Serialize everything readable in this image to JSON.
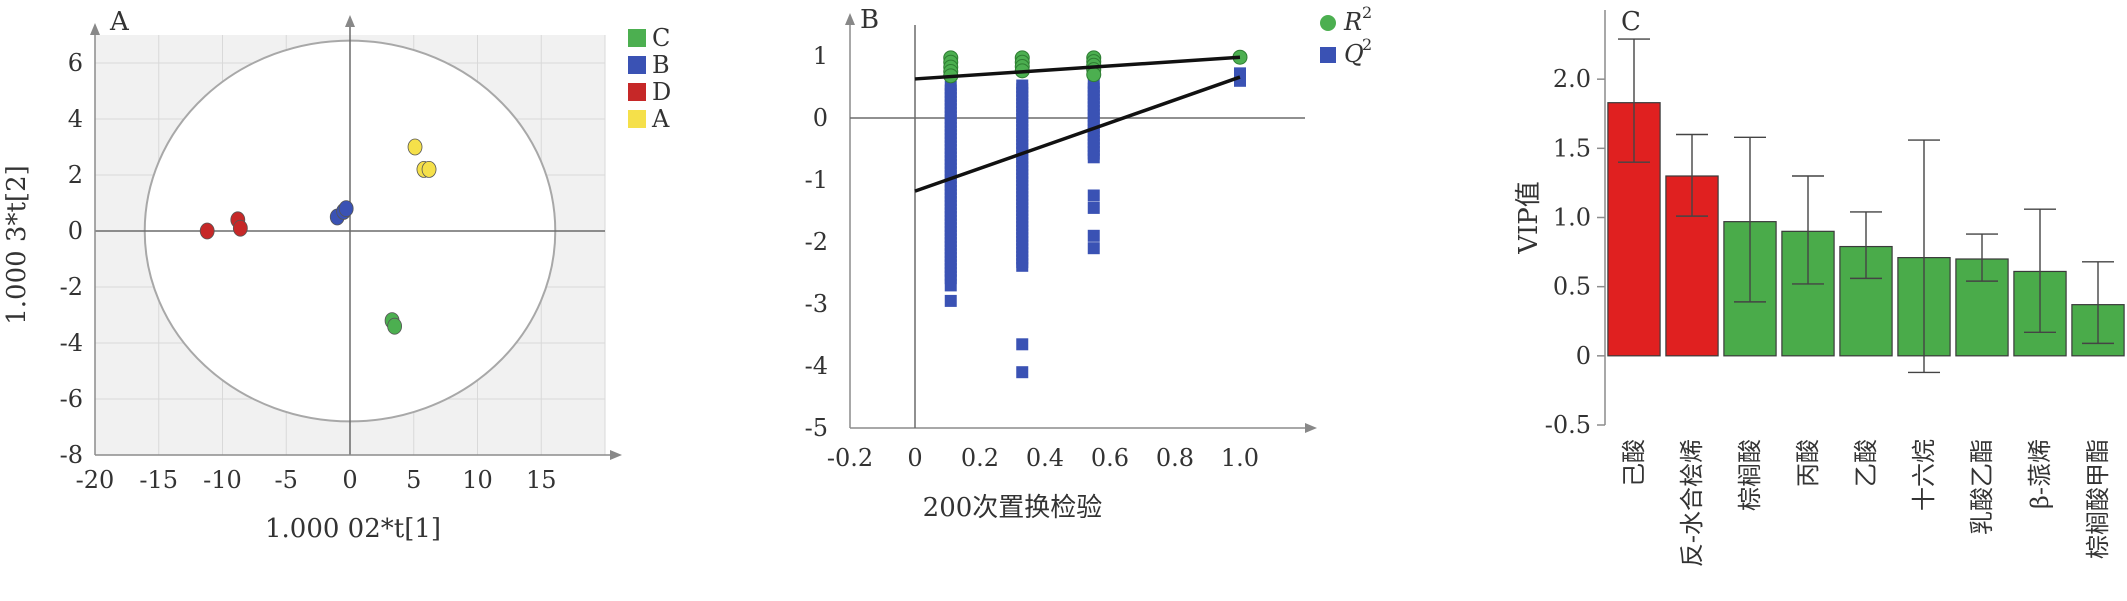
{
  "panels": {
    "A": {
      "letter": "A"
    },
    "B": {
      "letter": "B"
    },
    "C": {
      "letter": "C"
    }
  },
  "colors": {
    "grid": "#d9d9d9",
    "shade": "#f1f1f1",
    "axis": "#8c8c8c",
    "green": "#4caf50",
    "blue": "#3a52b4",
    "red": "#c62828",
    "yellow": "#f5e04a",
    "bar_red": "#e02020",
    "bar_green": "#4aab4a"
  },
  "chart_data": [
    {
      "panel": "A",
      "type": "scatter",
      "xlabel": "1.000 02*t[1]",
      "ylabel": "1.000 3*t[2]",
      "xlim": [
        -20,
        20
      ],
      "ylim": [
        -8,
        7
      ],
      "xticks": [
        "-20",
        "-15",
        "-10",
        "-5",
        "0",
        "5",
        "10",
        "15"
      ],
      "yticks": [
        "6",
        "4",
        "2",
        "0",
        "-2",
        "-4",
        "-6",
        "-8"
      ],
      "xtick_values": [
        -20,
        -15,
        -10,
        -5,
        0,
        5,
        10,
        15
      ],
      "ytick_values": [
        6,
        4,
        2,
        0,
        -2,
        -4,
        -6,
        -8
      ],
      "ellipse": {
        "rx": 16.1,
        "ry": 6.8
      },
      "legend_position": "top-right",
      "series": [
        {
          "name": "C",
          "color": "#4caf50",
          "points": [
            [
              3.3,
              -3.2
            ],
            [
              3.5,
              -3.4
            ]
          ]
        },
        {
          "name": "B",
          "color": "#3a52b4",
          "points": [
            [
              -1.0,
              0.5
            ],
            [
              -0.5,
              0.7
            ],
            [
              -0.3,
              0.8
            ]
          ]
        },
        {
          "name": "D",
          "color": "#c62828",
          "points": [
            [
              -11.2,
              0.0
            ],
            [
              -8.8,
              0.4
            ],
            [
              -8.6,
              0.1
            ]
          ]
        },
        {
          "name": "A",
          "color": "#f5e04a",
          "points": [
            [
              5.1,
              3.0
            ],
            [
              5.8,
              2.2
            ],
            [
              6.2,
              2.2
            ]
          ]
        }
      ]
    },
    {
      "panel": "B",
      "type": "scatter",
      "xlabel": "200次置换检验",
      "xlim": [
        -0.2,
        1.2
      ],
      "ylim": [
        -5,
        1.5
      ],
      "xticks": [
        "-0.2",
        "0",
        "0.2",
        "0.4",
        "0.6",
        "0.8",
        "1.0"
      ],
      "yticks": [
        "1",
        "0",
        "-1",
        "-2",
        "-3",
        "-4",
        "-5"
      ],
      "xtick_values": [
        -0.2,
        0,
        0.2,
        0.4,
        0.6,
        0.8,
        1.0
      ],
      "ytick_values": [
        1,
        0,
        -1,
        -2,
        -3,
        -4,
        -5
      ],
      "legend": [
        {
          "label": "R",
          "sup": "2",
          "color": "#4caf50"
        },
        {
          "label": "Q",
          "sup": "2",
          "color": "#3a52b4"
        }
      ],
      "r2_line": [
        [
          0,
          0.63
        ],
        [
          1.0,
          0.98
        ]
      ],
      "q2_line": [
        [
          0,
          -1.18
        ],
        [
          1.0,
          0.66
        ]
      ],
      "r2_points": [
        [
          0.11,
          0.97
        ],
        [
          0.11,
          0.9
        ],
        [
          0.11,
          0.82
        ],
        [
          0.11,
          0.75
        ],
        [
          0.11,
          0.68
        ],
        [
          0.33,
          0.97
        ],
        [
          0.33,
          0.9
        ],
        [
          0.33,
          0.83
        ],
        [
          0.33,
          0.76
        ],
        [
          0.55,
          0.97
        ],
        [
          0.55,
          0.91
        ],
        [
          0.55,
          0.85
        ],
        [
          0.55,
          0.78
        ],
        [
          0.55,
          0.7
        ],
        [
          1.0,
          0.98
        ]
      ],
      "q2_columns": [
        {
          "x": 0.11,
          "from": -2.6,
          "to": 0.55
        },
        {
          "x": 0.33,
          "from": -2.4,
          "to": 0.55
        },
        {
          "x": 0.55,
          "from": -0.65,
          "to": 0.55
        }
      ],
      "q2_points": [
        [
          0.11,
          -2.95
        ],
        [
          0.11,
          -2.7
        ],
        [
          0.33,
          -3.65
        ],
        [
          0.33,
          -4.1
        ],
        [
          0.55,
          -1.25
        ],
        [
          0.55,
          -1.45
        ],
        [
          0.55,
          -1.9
        ],
        [
          0.55,
          -2.1
        ],
        [
          1.0,
          0.6
        ],
        [
          1.0,
          0.72
        ]
      ]
    },
    {
      "panel": "C",
      "type": "bar",
      "ylabel": "VIP值",
      "ylim": [
        -0.5,
        2.5
      ],
      "yticks": [
        "2.0",
        "1.5",
        "1.0",
        "0.5",
        "0",
        "-0.5"
      ],
      "ytick_values": [
        2.0,
        1.5,
        1.0,
        0.5,
        0,
        -0.5
      ],
      "categories": [
        "己酸",
        "反-水合桧烯",
        "棕榈酸",
        "丙酸",
        "乙酸",
        "十六烷",
        "乳酸乙酯",
        "β-蒎烯",
        "棕榈酸甲酯"
      ],
      "values": [
        1.83,
        1.3,
        0.97,
        0.9,
        0.79,
        0.71,
        0.7,
        0.61,
        0.37
      ],
      "error_low": [
        1.4,
        1.01,
        0.39,
        0.52,
        0.56,
        -0.12,
        0.54,
        0.17,
        0.09
      ],
      "error_high": [
        2.29,
        1.6,
        1.58,
        1.3,
        1.04,
        1.56,
        0.88,
        1.06,
        0.68
      ],
      "bar_colors": [
        "#e02020",
        "#e02020",
        "#4aab4a",
        "#4aab4a",
        "#4aab4a",
        "#4aab4a",
        "#4aab4a",
        "#4aab4a",
        "#4aab4a"
      ]
    }
  ]
}
